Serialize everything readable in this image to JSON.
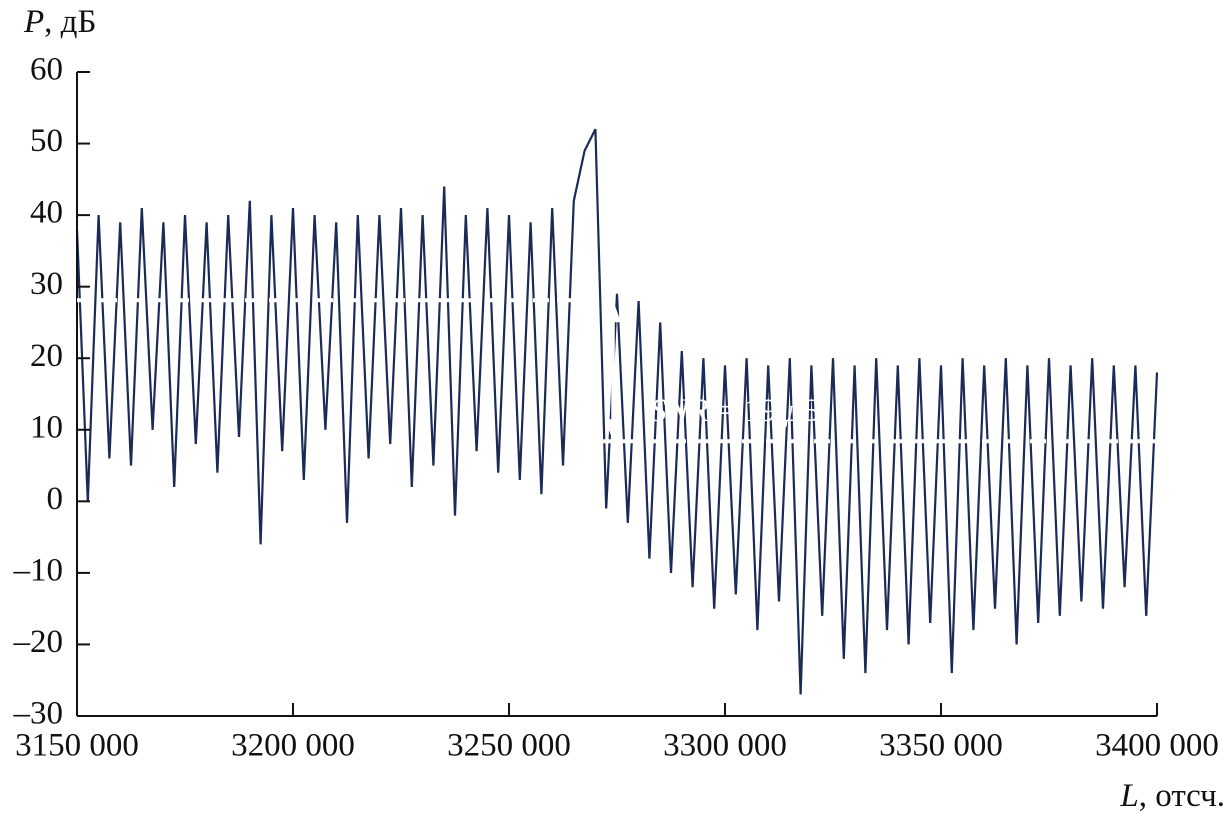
{
  "chart_data": {
    "type": "line",
    "y_label": [
      "P",
      ", дБ"
    ],
    "x_label": [
      "L",
      ", отсч."
    ],
    "color": "#1b2a56",
    "x": [
      3150000,
      3152500,
      3155000,
      3157500,
      3160000,
      3162500,
      3165000,
      3167500,
      3170000,
      3172500,
      3175000,
      3177500,
      3180000,
      3182500,
      3185000,
      3187500,
      3190000,
      3192500,
      3195000,
      3197500,
      3200000,
      3202500,
      3205000,
      3207500,
      3210000,
      3212500,
      3215000,
      3217500,
      3220000,
      3222500,
      3225000,
      3227500,
      3230000,
      3232500,
      3235000,
      3237500,
      3240000,
      3242500,
      3245000,
      3247500,
      3250000,
      3252500,
      3255000,
      3257500,
      3260000,
      3262500,
      3265000,
      3267500,
      3270000,
      3272500,
      3275000,
      3277500,
      3280000,
      3282500,
      3285000,
      3287500,
      3290000,
      3292500,
      3295000,
      3297500,
      3300000,
      3302500,
      3305000,
      3307500,
      3310000,
      3312500,
      3315000,
      3317500,
      3320000,
      3322500,
      3325000,
      3327500,
      3330000,
      3332500,
      3335000,
      3337500,
      3340000,
      3342500,
      3345000,
      3347500,
      3350000,
      3352500,
      3355000,
      3357500,
      3360000,
      3362500,
      3365000,
      3367500,
      3370000,
      3372500,
      3375000,
      3377500,
      3380000,
      3382500,
      3385000,
      3387500,
      3390000,
      3392500,
      3395000,
      3397500,
      3400000
    ],
    "values": [
      38,
      0,
      40,
      6,
      39,
      5,
      41,
      10,
      39,
      2,
      40,
      8,
      39,
      4,
      40,
      9,
      42,
      -6,
      40,
      7,
      41,
      3,
      40,
      10,
      39,
      -3,
      40,
      6,
      40,
      8,
      41,
      2,
      40,
      5,
      44,
      -2,
      40,
      7,
      41,
      4,
      40,
      3,
      39,
      1,
      41,
      5,
      42,
      49,
      52,
      -1,
      29,
      -3,
      28,
      -8,
      25,
      -10,
      21,
      -12,
      20,
      -15,
      19,
      -13,
      20,
      -18,
      19,
      -14,
      20,
      -27,
      19,
      -16,
      20,
      -22,
      19,
      -24,
      20,
      -18,
      19,
      -20,
      20,
      -17,
      19,
      -24,
      20,
      -18,
      19,
      -15,
      20,
      -20,
      19,
      -17,
      20,
      -16,
      19,
      -14,
      20,
      -15,
      19,
      -12,
      19,
      -16,
      18
    ],
    "levels": [
      {
        "value": 28.1,
        "xrange": [
          3150000,
          3273400
        ]
      },
      {
        "value": 8.4,
        "xrange": [
          3270600,
          3400000
        ]
      }
    ],
    "annotation": [
      "SNR",
      " = 19 дБ"
    ],
    "xlim": [
      3150000,
      3400000
    ],
    "xticks": [
      {
        "value": 3150000,
        "label": "3150 000"
      },
      {
        "value": 3200000,
        "label": "3200 000"
      },
      {
        "value": 3250000,
        "label": "3250 000"
      },
      {
        "value": 3300000,
        "label": "3300 000"
      },
      {
        "value": 3350000,
        "label": "3350 000"
      },
      {
        "value": 3400000,
        "label": "3400 000"
      }
    ],
    "ylim": [
      -30,
      60
    ],
    "yticks": [
      60,
      50,
      40,
      30,
      20,
      10,
      0,
      {
        "value": -10,
        "label": "–10"
      },
      {
        "value": -20,
        "label": "–20"
      },
      {
        "value": -30,
        "label": "–30"
      }
    ]
  }
}
